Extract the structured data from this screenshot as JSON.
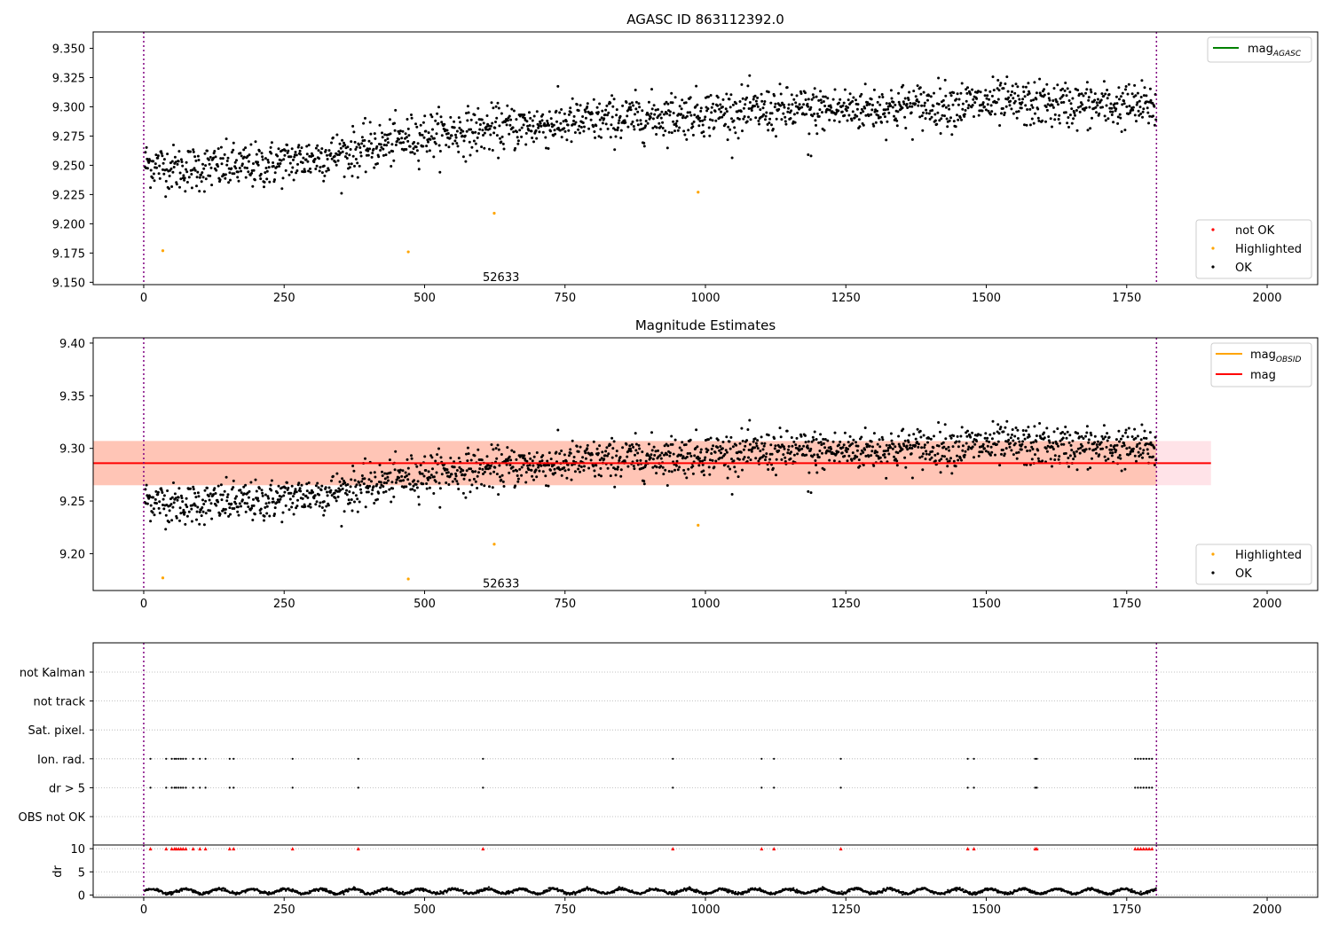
{
  "colors": {
    "ok": "#000000",
    "not_ok": "#ff0000",
    "highlighted": "#ffa500",
    "mag_agasc_line": "#008000",
    "mag_obsid_line": "#ffa500",
    "mag_line": "#ff0000",
    "band_outer": "#ffc0cb",
    "band_inner": "#ffa07a",
    "obs_boundary": "#800080",
    "grid": "#b0b0b0"
  },
  "chart_data": [
    {
      "type": "scatter",
      "panel": "top",
      "title": "AGASC ID 863112392.0",
      "xlim": [
        -90,
        2090
      ],
      "ylim": [
        9.148,
        9.364
      ],
      "xticks": [
        "0",
        "250",
        "500",
        "750",
        "1000",
        "1250",
        "1500",
        "1750",
        "2000"
      ],
      "yticks": [
        "9.150",
        "9.175",
        "9.200",
        "9.225",
        "9.250",
        "9.275",
        "9.300",
        "9.325",
        "9.350"
      ],
      "obs_boundaries": [
        0,
        1803
      ],
      "obsid_annotation": {
        "text": "52633",
        "x": 900,
        "y": 9.155
      },
      "ok_trend": {
        "x": [
          0,
          60,
          200,
          380,
          500,
          750,
          1000,
          1250,
          1500,
          1803
        ],
        "y": [
          9.252,
          9.247,
          9.249,
          9.262,
          9.276,
          9.286,
          9.295,
          9.298,
          9.303,
          9.3
        ],
        "scatter": 0.013,
        "n": 1800,
        "outliers": [
          {
            "x": 1183,
            "y": 9.259
          },
          {
            "x": 1188,
            "y": 9.258
          }
        ]
      },
      "highlighted_points": [
        {
          "x": 34,
          "y": 9.177
        },
        {
          "x": 471,
          "y": 9.176
        },
        {
          "x": 624,
          "y": 9.209
        },
        {
          "x": 987,
          "y": 9.227
        }
      ],
      "line_legend": [
        {
          "label": "mag",
          "sub": "AGASC",
          "color": "#008000"
        }
      ],
      "marker_legend": [
        {
          "label": "not OK",
          "color": "#ff0000"
        },
        {
          "label": "Highlighted",
          "color": "#ffa500"
        },
        {
          "label": "OK",
          "color": "#000000"
        }
      ]
    },
    {
      "type": "scatter",
      "panel": "middle",
      "title": "Magnitude Estimates",
      "xlim": [
        -90,
        2090
      ],
      "ylim": [
        9.165,
        9.405
      ],
      "xticks": [
        "0",
        "250",
        "500",
        "750",
        "1000",
        "1250",
        "1500",
        "1750",
        "2000"
      ],
      "yticks": [
        "9.20",
        "9.25",
        "9.30",
        "9.35",
        "9.40"
      ],
      "obs_boundaries": [
        0,
        1803
      ],
      "obsid_annotation": {
        "text": "52633",
        "x": 900,
        "y": 9.172
      },
      "mag_line": {
        "y": 9.286,
        "x0": -90,
        "x1": 1900
      },
      "band_outer": {
        "y0": 9.265,
        "y1": 9.307,
        "x0": -90,
        "x1": 1900
      },
      "band_inner": {
        "y0": 9.265,
        "y1": 9.307,
        "x0": -90,
        "x1": 1803
      },
      "ok_trend": {
        "x": [
          0,
          60,
          200,
          380,
          500,
          750,
          1000,
          1250,
          1500,
          1803
        ],
        "y": [
          9.252,
          9.247,
          9.249,
          9.262,
          9.276,
          9.286,
          9.295,
          9.298,
          9.303,
          9.3
        ],
        "scatter": 0.013,
        "n": 1800,
        "outliers": [
          {
            "x": 1183,
            "y": 9.259
          },
          {
            "x": 1188,
            "y": 9.258
          }
        ]
      },
      "highlighted_points": [
        {
          "x": 34,
          "y": 9.177
        },
        {
          "x": 471,
          "y": 9.176
        },
        {
          "x": 624,
          "y": 9.209
        },
        {
          "x": 987,
          "y": 9.227
        }
      ],
      "line_legend": [
        {
          "label": "mag",
          "sub": "OBSID",
          "color": "#ffa500"
        },
        {
          "label": "mag",
          "sub": "",
          "color": "#ff0000"
        }
      ],
      "marker_legend": [
        {
          "label": "Highlighted",
          "color": "#ffa500"
        },
        {
          "label": "OK",
          "color": "#000000"
        }
      ]
    },
    {
      "type": "scatter",
      "panel": "flags",
      "xlim": [
        -90,
        2090
      ],
      "categories": [
        "not Kalman",
        "not track",
        "Sat. pixel.",
        "Ion. rad.",
        "dr > 5",
        "OBS not OK"
      ],
      "obs_boundaries": [
        0,
        1803
      ],
      "flag_x": [
        12,
        40,
        50,
        55,
        58,
        62,
        66,
        70,
        75,
        88,
        100,
        110,
        153,
        160,
        265,
        382,
        604,
        942,
        1100,
        1122,
        1241,
        1467,
        1478,
        1587,
        1590,
        1765,
        1770,
        1775,
        1780,
        1785,
        1790,
        1795
      ],
      "flag_rows": [
        "Ion. rad.",
        "dr > 5"
      ]
    },
    {
      "type": "line",
      "panel": "dr",
      "ylabel": "dr",
      "xlim": [
        -90,
        2090
      ],
      "ylim": [
        -0.5,
        10.8
      ],
      "yticks": [
        "0",
        "5",
        "10"
      ],
      "xticks": [
        "0",
        "250",
        "500",
        "750",
        "1000",
        "1250",
        "1500",
        "1750",
        "2000"
      ],
      "obs_boundaries": [
        0,
        1803
      ],
      "dr_mean": 0.8,
      "dr_amplitude": 0.5,
      "n": 1800,
      "clipped_marker_y": 10,
      "clipped_x": [
        12,
        40,
        50,
        55,
        58,
        62,
        66,
        70,
        75,
        88,
        100,
        110,
        153,
        160,
        265,
        382,
        604,
        942,
        1100,
        1122,
        1241,
        1467,
        1478,
        1587,
        1590,
        1765,
        1770,
        1775,
        1780,
        1785,
        1790,
        1795
      ]
    }
  ]
}
